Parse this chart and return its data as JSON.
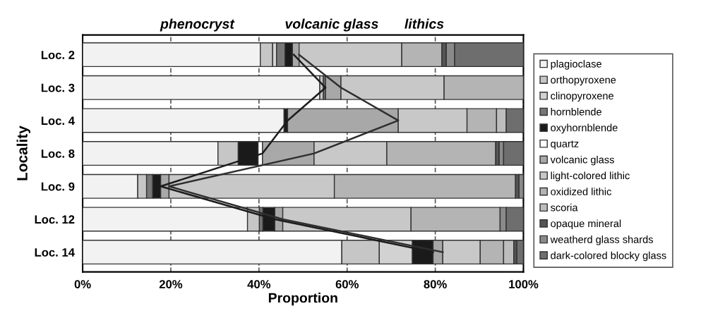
{
  "chart_data": {
    "type": "bar",
    "orientation": "horizontal",
    "stacked": true,
    "categories": [
      "Loc. 2",
      "Loc. 3",
      "Loc. 4",
      "Loc. 8",
      "Loc. 9",
      "Loc. 12",
      "Loc. 14"
    ],
    "xlabel": "Proportion",
    "ylabel": "Locality",
    "xlim": [
      0,
      100
    ],
    "xticks": [
      {
        "value": 0,
        "label": "0%"
      },
      {
        "value": 20,
        "label": "20%"
      },
      {
        "value": 40,
        "label": "40%"
      },
      {
        "value": 60,
        "label": "60%"
      },
      {
        "value": 80,
        "label": "80%"
      },
      {
        "value": 100,
        "label": "100%"
      }
    ],
    "grid": "x",
    "legend": "right",
    "annotations": [
      "phenocryst",
      "volcanic glass",
      "lithics"
    ],
    "series": [
      {
        "name": "plagioclase",
        "color": "#f2f2f2",
        "values": [
          40.3,
          53.8,
          45.7,
          30.7,
          12.5,
          37.4,
          58.8
        ]
      },
      {
        "name": "orthopyroxene",
        "color": "#c6c6c6",
        "values": [
          2.8,
          0.8,
          0,
          4.6,
          2.0,
          2.7,
          8.5
        ]
      },
      {
        "name": "clinopyroxene",
        "color": "#d2d2d2",
        "values": [
          0.9,
          0,
          0,
          0,
          0,
          0,
          7.5
        ]
      },
      {
        "name": "hornblende",
        "color": "#777777",
        "values": [
          1.9,
          0.5,
          0,
          0,
          1.4,
          0.8,
          0
        ]
      },
      {
        "name": "oxyhornblende",
        "color": "#1a1a1a",
        "values": [
          1.7,
          0,
          0.8,
          4.5,
          1.8,
          2.7,
          4.7
        ]
      },
      {
        "name": "quartz",
        "color": "#ffffff",
        "values": [
          null,
          0,
          0,
          1.0,
          0,
          0,
          0
        ]
      },
      {
        "name": "volcanic glass",
        "color": "#a8a8a8",
        "values": [
          1.5,
          3.5,
          25.1,
          11.7,
          1.9,
          1.8,
          2.2
        ]
      },
      {
        "name": "light-colored lithic",
        "color": "#c8c8c8",
        "values": [
          23.3,
          23.4,
          15.6,
          16.5,
          37.5,
          29.1,
          8.5
        ]
      },
      {
        "name": "oxidized lithic",
        "color": "#b4b4b4",
        "values": [
          9.1,
          18.0,
          6.7,
          24.7,
          41.1,
          20.2,
          5.3
        ]
      },
      {
        "name": "scoria",
        "color": "#bdbdbd",
        "values": [
          0,
          0,
          2.2,
          0,
          0,
          0,
          2.3
        ]
      },
      {
        "name": "opaque mineral",
        "color": "#555555",
        "values": [
          1.0,
          0,
          0,
          0.8,
          0.8,
          0,
          0.7
        ]
      },
      {
        "name": "weatherd glass shards",
        "color": "#8a8a8a",
        "values": [
          1.9,
          0,
          0,
          1.0,
          1.0,
          1.4,
          0
        ]
      },
      {
        "name": "dark-colored blocky glass",
        "color": "#6e6e6e",
        "values": [
          15.6,
          0,
          3.9,
          4.5,
          0,
          3.9,
          1.5
        ]
      },
      {
        "type": "line",
        "color": "#1c1c1c",
        "values": [
          47.9,
          55.1,
          46.5,
          40.8,
          17.7,
          43.6,
          79.5
        ]
      },
      {
        "type": "line",
        "color": "#2e2e2e",
        "values": [
          49.1,
          58.6,
          71.6,
          52.5,
          19.6,
          45.4,
          81.7
        ]
      }
    ]
  }
}
